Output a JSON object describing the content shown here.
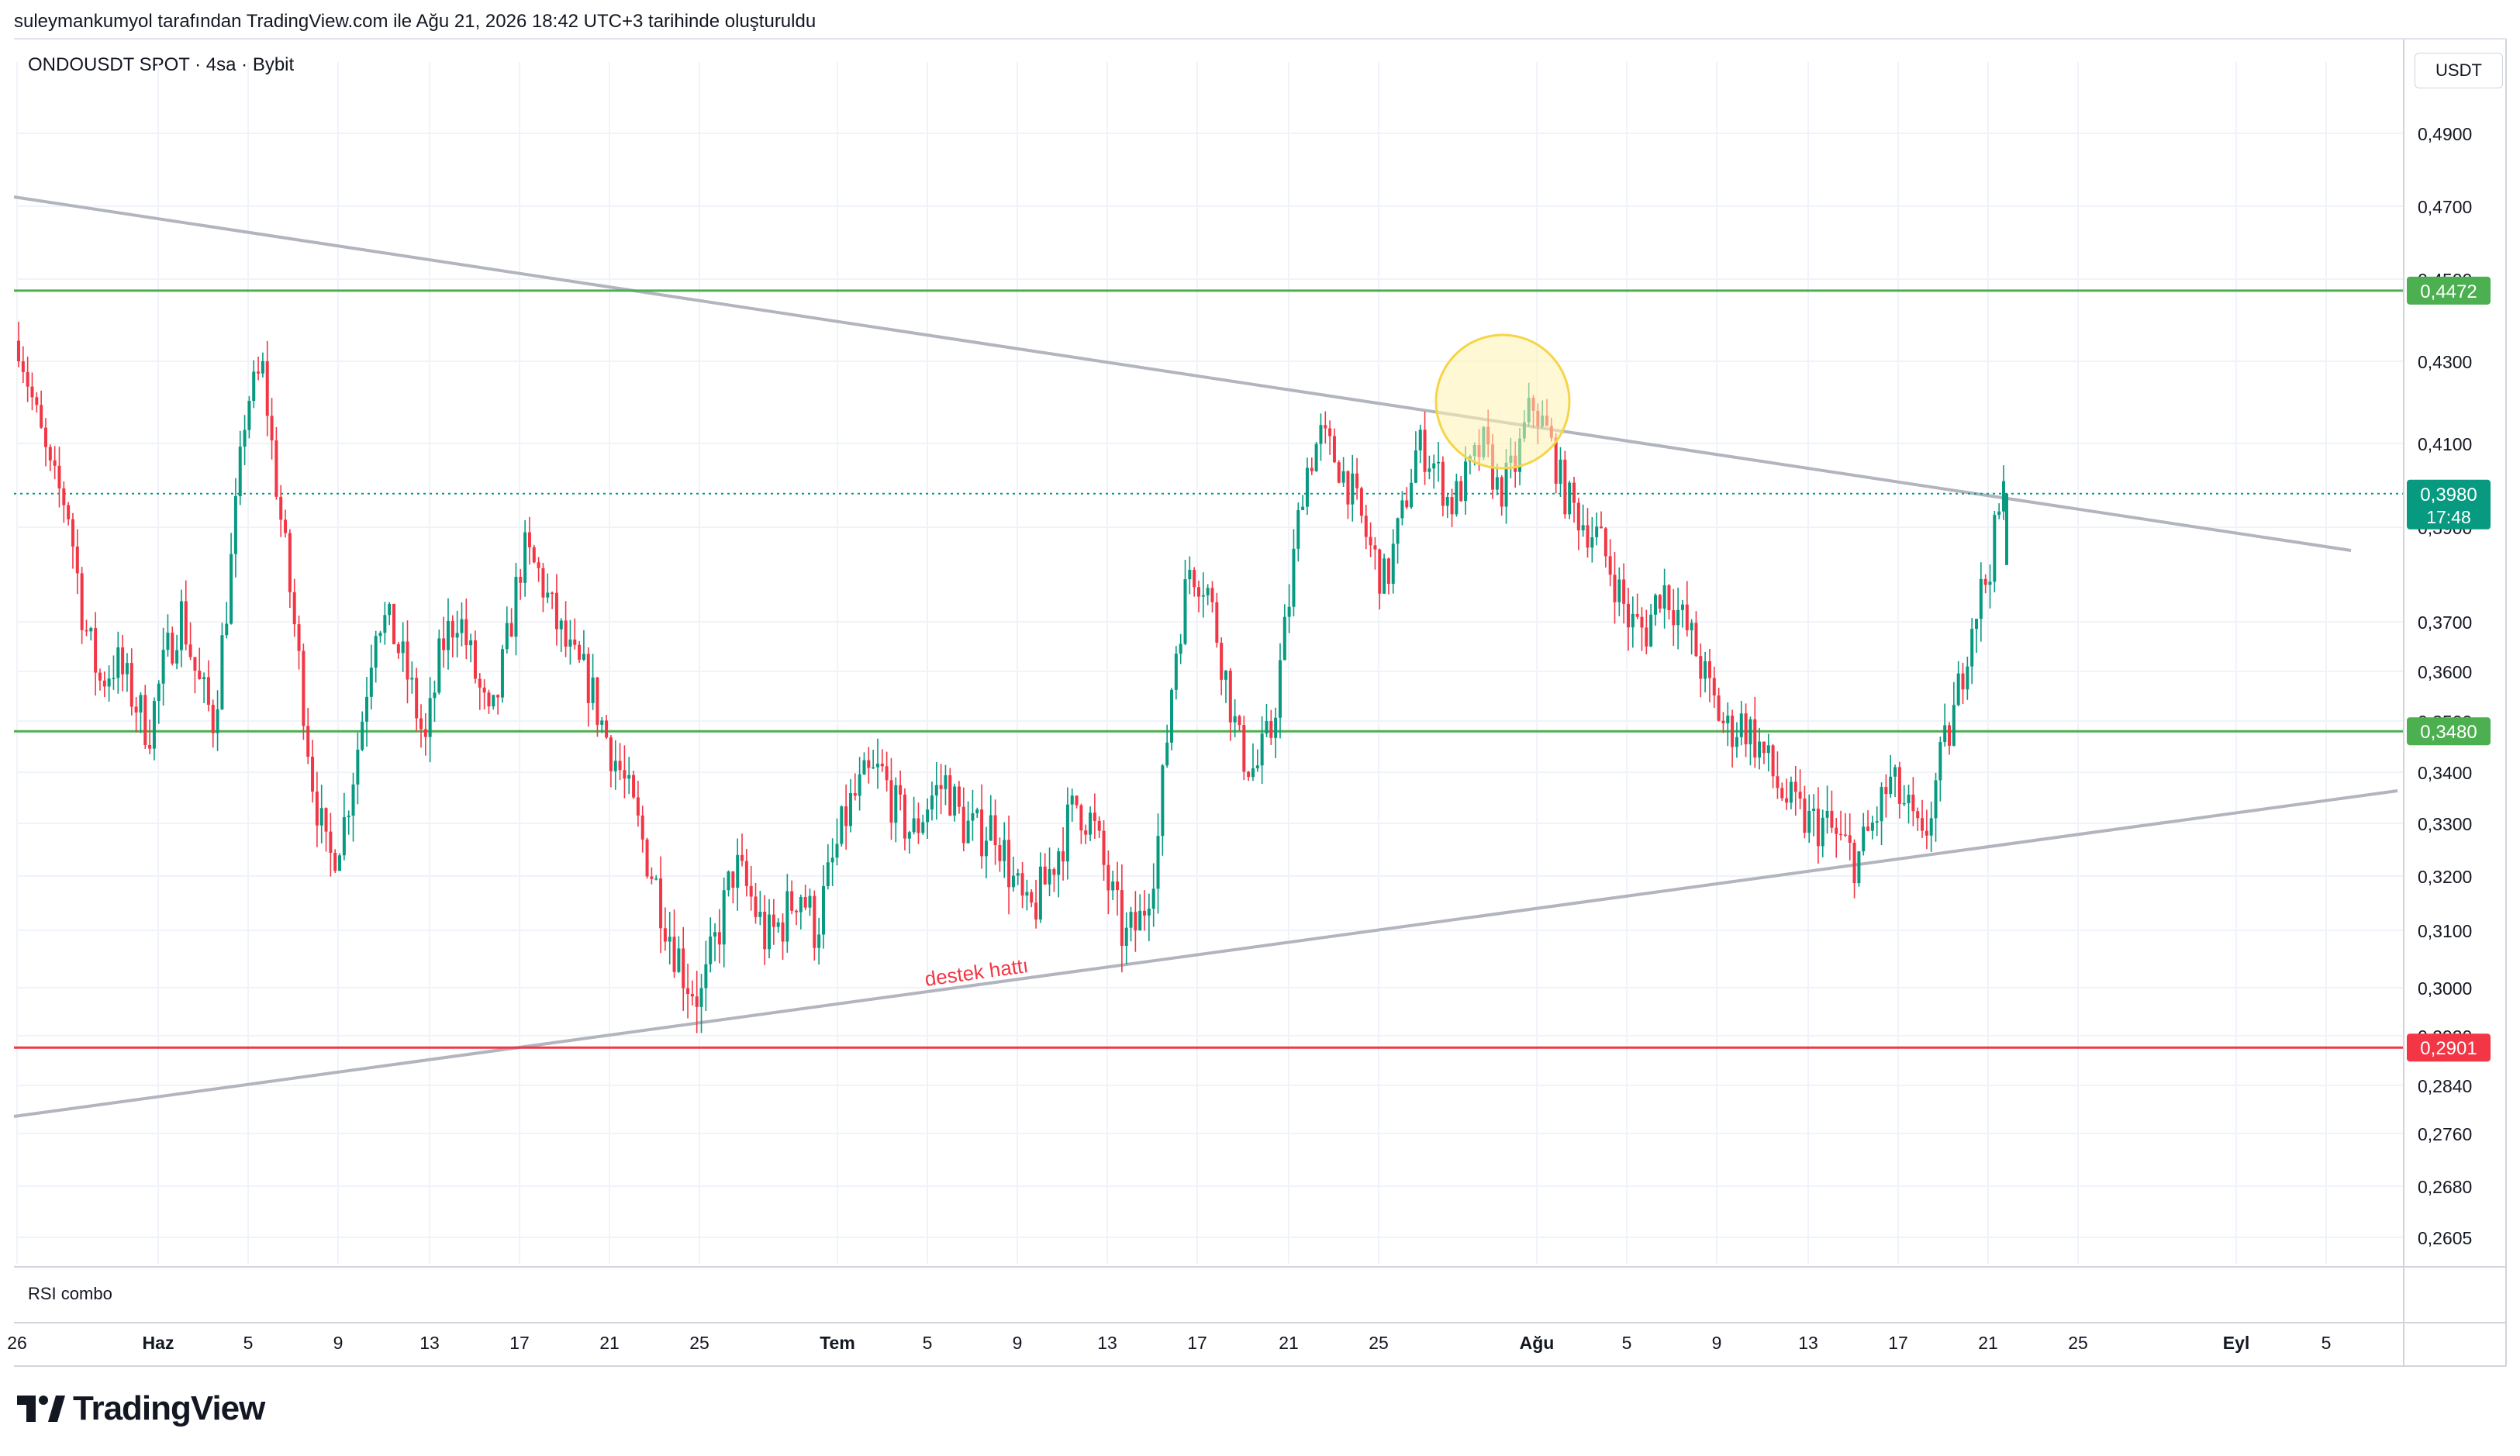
{
  "header": {
    "attribution": "suleymankumyol tarafından TradingView.com ile Ağu 21, 2026 18:42 UTC+3 tarihinde oluşturuldu"
  },
  "symbol": {
    "title": "ONDOUSDT SPOT · 4sa · Bybit"
  },
  "price_scale": {
    "currency": "USDT"
  },
  "indicator": {
    "label": "RSI combo"
  },
  "brand": {
    "name": "TradingView"
  },
  "colors": {
    "up": "#089981",
    "down": "#f23645",
    "trendline": "#b2b5be",
    "green_level": "#4caf50",
    "red_level": "#f23645",
    "highlight": "#fff3b0",
    "highlight_stroke": "#f5d547"
  },
  "chart_data": {
    "type": "candlestick",
    "y_axis": {
      "ticks": [
        "0,4900",
        "0,4700",
        "0,4500",
        "0,4300",
        "0,4100",
        "0,3900",
        "0,3700",
        "0,3600",
        "0,3500",
        "0,3400",
        "0,3300",
        "0,3200",
        "0,3100",
        "0,3000",
        "0,2920",
        "0,2840",
        "0,2760",
        "0,2680",
        "0,2605"
      ]
    },
    "x_axis": {
      "ticks": [
        "26",
        "Haz",
        "5",
        "9",
        "13",
        "17",
        "21",
        "25",
        "Tem",
        "5",
        "9",
        "13",
        "17",
        "21",
        "25",
        "Ağu",
        "5",
        "9",
        "13",
        "17",
        "21",
        "25",
        "Eyl",
        "5"
      ],
      "bold": [
        "Haz",
        "Tem",
        "Ağu",
        "Eyl"
      ]
    },
    "price_labels": [
      {
        "value": "0,4472",
        "color": "#4caf50"
      },
      {
        "value": "0,3980",
        "sub": "17:48",
        "color": "#089981"
      },
      {
        "value": "0,3480",
        "color": "#4caf50"
      },
      {
        "value": "0,2901",
        "color": "#f23645"
      }
    ],
    "horizontal_levels": [
      {
        "price": 0.4472,
        "color": "#4caf50"
      },
      {
        "price": 0.348,
        "color": "#4caf50"
      },
      {
        "price": 0.2901,
        "color": "#f23645"
      }
    ],
    "current_price": 0.398,
    "annotation": {
      "text": "destek hattı",
      "color": "#f23645"
    },
    "price_path": [
      0.435,
      0.418,
      0.402,
      0.395,
      0.37,
      0.358,
      0.362,
      0.355,
      0.348,
      0.362,
      0.372,
      0.358,
      0.35,
      0.38,
      0.42,
      0.428,
      0.395,
      0.368,
      0.34,
      0.322,
      0.33,
      0.348,
      0.372,
      0.368,
      0.358,
      0.345,
      0.365,
      0.372,
      0.36,
      0.348,
      0.365,
      0.385,
      0.38,
      0.37,
      0.362,
      0.358,
      0.348,
      0.34,
      0.33,
      0.32,
      0.31,
      0.302,
      0.298,
      0.31,
      0.322,
      0.316,
      0.308,
      0.312,
      0.318,
      0.31,
      0.322,
      0.333,
      0.338,
      0.34,
      0.332,
      0.328,
      0.335,
      0.338,
      0.33,
      0.328,
      0.33,
      0.32,
      0.312,
      0.318,
      0.326,
      0.334,
      0.33,
      0.318,
      0.308,
      0.312,
      0.326,
      0.362,
      0.382,
      0.378,
      0.362,
      0.345,
      0.34,
      0.348,
      0.372,
      0.402,
      0.412,
      0.406,
      0.398,
      0.386,
      0.378,
      0.392,
      0.41,
      0.405,
      0.395,
      0.402,
      0.41,
      0.398,
      0.405,
      0.42,
      0.412,
      0.398,
      0.392,
      0.388,
      0.38,
      0.37,
      0.368,
      0.378,
      0.372,
      0.365,
      0.355,
      0.348,
      0.35,
      0.345,
      0.338,
      0.333,
      0.33,
      0.33,
      0.326,
      0.323,
      0.33,
      0.338,
      0.333,
      0.325,
      0.34,
      0.352,
      0.37,
      0.38,
      0.398
    ]
  }
}
